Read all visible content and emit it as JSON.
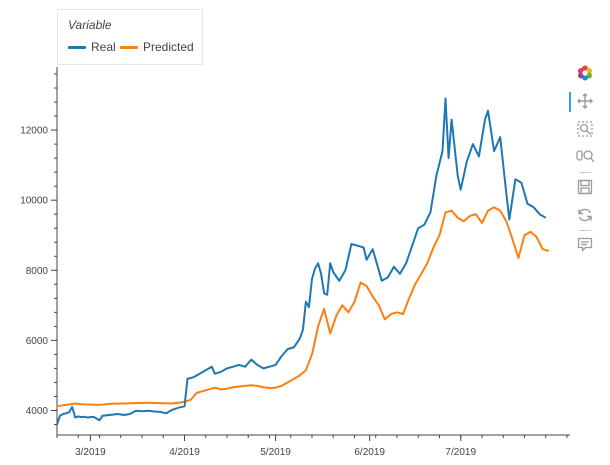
{
  "legend": {
    "title": "Variable",
    "items": [
      "Real",
      "Predicted"
    ]
  },
  "colors": {
    "real": "#1f77b4",
    "predicted": "#ff7f0e",
    "toolbar_active": "#26aae1"
  },
  "toolbar": {
    "tools": [
      {
        "icon": "bokeh-logo-icon",
        "label": ""
      },
      {
        "icon": "pan-icon",
        "label": ""
      },
      {
        "icon": "box-zoom-icon",
        "label": ""
      },
      {
        "icon": "wheel-zoom-icon",
        "label": ""
      },
      {
        "icon": "save-icon",
        "label": ""
      },
      {
        "icon": "reset-icon",
        "label": ""
      },
      {
        "icon": "hover-icon",
        "label": ""
      }
    ]
  },
  "chart_data": {
    "type": "line",
    "title": "",
    "xlabel": "",
    "ylabel": "",
    "x_axis": "date",
    "xlim": [
      "2019-02-18",
      "2019-08-06"
    ],
    "ylim": [
      3300,
      13800
    ],
    "x_ticks": [
      {
        "date": "2019-03-01",
        "label": "3/2019"
      },
      {
        "date": "2019-04-01",
        "label": "4/2019"
      },
      {
        "date": "2019-05-01",
        "label": "5/2019"
      },
      {
        "date": "2019-06-01",
        "label": "6/2019"
      },
      {
        "date": "2019-07-01",
        "label": "7/2019"
      }
    ],
    "y_ticks": [
      4000,
      6000,
      8000,
      10000,
      12000
    ],
    "grid": false,
    "legend_position": "top-left",
    "series": [
      {
        "name": "Real",
        "points": [
          [
            "2019-02-18",
            3600
          ],
          [
            "2019-02-19",
            3850
          ],
          [
            "2019-02-20",
            3900
          ],
          [
            "2019-02-21",
            3920
          ],
          [
            "2019-02-22",
            3950
          ],
          [
            "2019-02-23",
            4100
          ],
          [
            "2019-02-24",
            3800
          ],
          [
            "2019-02-25",
            3830
          ],
          [
            "2019-02-26",
            3810
          ],
          [
            "2019-02-27",
            3820
          ],
          [
            "2019-02-28",
            3800
          ],
          [
            "2019-03-02",
            3820
          ],
          [
            "2019-03-04",
            3720
          ],
          [
            "2019-03-05",
            3850
          ],
          [
            "2019-03-08",
            3880
          ],
          [
            "2019-03-10",
            3900
          ],
          [
            "2019-03-12",
            3870
          ],
          [
            "2019-03-14",
            3900
          ],
          [
            "2019-03-16",
            3990
          ],
          [
            "2019-03-18",
            3980
          ],
          [
            "2019-03-20",
            3990
          ],
          [
            "2019-03-22",
            3970
          ],
          [
            "2019-03-24",
            3960
          ],
          [
            "2019-03-26",
            3920
          ],
          [
            "2019-03-28",
            4020
          ],
          [
            "2019-03-30",
            4080
          ],
          [
            "2019-04-01",
            4120
          ],
          [
            "2019-04-02",
            4900
          ],
          [
            "2019-04-04",
            4950
          ],
          [
            "2019-04-06",
            5050
          ],
          [
            "2019-04-08",
            5150
          ],
          [
            "2019-04-10",
            5250
          ],
          [
            "2019-04-11",
            5050
          ],
          [
            "2019-04-13",
            5100
          ],
          [
            "2019-04-15",
            5200
          ],
          [
            "2019-04-17",
            5250
          ],
          [
            "2019-04-19",
            5300
          ],
          [
            "2019-04-21",
            5250
          ],
          [
            "2019-04-23",
            5450
          ],
          [
            "2019-04-25",
            5300
          ],
          [
            "2019-04-27",
            5200
          ],
          [
            "2019-04-29",
            5250
          ],
          [
            "2019-05-01",
            5300
          ],
          [
            "2019-05-03",
            5550
          ],
          [
            "2019-05-05",
            5750
          ],
          [
            "2019-05-07",
            5800
          ],
          [
            "2019-05-09",
            6050
          ],
          [
            "2019-05-10",
            6300
          ],
          [
            "2019-05-11",
            7100
          ],
          [
            "2019-05-12",
            6950
          ],
          [
            "2019-05-13",
            7750
          ],
          [
            "2019-05-14",
            8050
          ],
          [
            "2019-05-15",
            8200
          ],
          [
            "2019-05-16",
            7900
          ],
          [
            "2019-05-17",
            7350
          ],
          [
            "2019-05-18",
            7300
          ],
          [
            "2019-05-19",
            8200
          ],
          [
            "2019-05-20",
            7950
          ],
          [
            "2019-05-22",
            7700
          ],
          [
            "2019-05-24",
            8000
          ],
          [
            "2019-05-26",
            8750
          ],
          [
            "2019-05-28",
            8700
          ],
          [
            "2019-05-30",
            8650
          ],
          [
            "2019-05-31",
            8300
          ],
          [
            "2019-06-02",
            8600
          ],
          [
            "2019-06-04",
            8000
          ],
          [
            "2019-06-05",
            7700
          ],
          [
            "2019-06-07",
            7800
          ],
          [
            "2019-06-09",
            8100
          ],
          [
            "2019-06-11",
            7900
          ],
          [
            "2019-06-13",
            8200
          ],
          [
            "2019-06-15",
            8700
          ],
          [
            "2019-06-17",
            9200
          ],
          [
            "2019-06-19",
            9300
          ],
          [
            "2019-06-21",
            9650
          ],
          [
            "2019-06-23",
            10700
          ],
          [
            "2019-06-25",
            11400
          ],
          [
            "2019-06-26",
            12900
          ],
          [
            "2019-06-27",
            11200
          ],
          [
            "2019-06-28",
            12300
          ],
          [
            "2019-06-30",
            10700
          ],
          [
            "2019-07-01",
            10300
          ],
          [
            "2019-07-03",
            11100
          ],
          [
            "2019-07-05",
            11600
          ],
          [
            "2019-07-07",
            11250
          ],
          [
            "2019-07-09",
            12300
          ],
          [
            "2019-07-10",
            12550
          ],
          [
            "2019-07-12",
            11400
          ],
          [
            "2019-07-14",
            11800
          ],
          [
            "2019-07-16",
            10200
          ],
          [
            "2019-07-17",
            9450
          ],
          [
            "2019-07-19",
            10600
          ],
          [
            "2019-07-21",
            10500
          ],
          [
            "2019-07-23",
            9900
          ],
          [
            "2019-07-25",
            9800
          ],
          [
            "2019-07-27",
            9600
          ],
          [
            "2019-07-29",
            9500
          ]
        ]
      },
      {
        "name": "Predicted",
        "points": [
          [
            "2019-02-18",
            4120
          ],
          [
            "2019-02-20",
            4150
          ],
          [
            "2019-02-22",
            4170
          ],
          [
            "2019-02-24",
            4200
          ],
          [
            "2019-02-26",
            4180
          ],
          [
            "2019-02-28",
            4170
          ],
          [
            "2019-03-04",
            4160
          ],
          [
            "2019-03-08",
            4190
          ],
          [
            "2019-03-12",
            4200
          ],
          [
            "2019-03-16",
            4210
          ],
          [
            "2019-03-20",
            4220
          ],
          [
            "2019-03-24",
            4210
          ],
          [
            "2019-03-28",
            4200
          ],
          [
            "2019-03-31",
            4230
          ],
          [
            "2019-04-03",
            4300
          ],
          [
            "2019-04-05",
            4500
          ],
          [
            "2019-04-07",
            4550
          ],
          [
            "2019-04-09",
            4600
          ],
          [
            "2019-04-11",
            4650
          ],
          [
            "2019-04-13",
            4600
          ],
          [
            "2019-04-15",
            4620
          ],
          [
            "2019-04-17",
            4660
          ],
          [
            "2019-04-19",
            4680
          ],
          [
            "2019-04-21",
            4700
          ],
          [
            "2019-04-23",
            4720
          ],
          [
            "2019-04-25",
            4700
          ],
          [
            "2019-04-27",
            4660
          ],
          [
            "2019-04-29",
            4640
          ],
          [
            "2019-05-01",
            4650
          ],
          [
            "2019-05-03",
            4700
          ],
          [
            "2019-05-05",
            4800
          ],
          [
            "2019-05-07",
            4900
          ],
          [
            "2019-05-09",
            5000
          ],
          [
            "2019-05-11",
            5150
          ],
          [
            "2019-05-13",
            5600
          ],
          [
            "2019-05-15",
            6400
          ],
          [
            "2019-05-17",
            6900
          ],
          [
            "2019-05-19",
            6200
          ],
          [
            "2019-05-21",
            6700
          ],
          [
            "2019-05-23",
            7000
          ],
          [
            "2019-05-25",
            6800
          ],
          [
            "2019-05-27",
            7100
          ],
          [
            "2019-05-29",
            7650
          ],
          [
            "2019-05-31",
            7550
          ],
          [
            "2019-06-02",
            7250
          ],
          [
            "2019-06-04",
            7000
          ],
          [
            "2019-06-06",
            6600
          ],
          [
            "2019-06-08",
            6750
          ],
          [
            "2019-06-10",
            6800
          ],
          [
            "2019-06-12",
            6750
          ],
          [
            "2019-06-14",
            7200
          ],
          [
            "2019-06-16",
            7600
          ],
          [
            "2019-06-18",
            7900
          ],
          [
            "2019-06-20",
            8200
          ],
          [
            "2019-06-22",
            8650
          ],
          [
            "2019-06-24",
            9000
          ],
          [
            "2019-06-26",
            9650
          ],
          [
            "2019-06-28",
            9700
          ],
          [
            "2019-06-30",
            9500
          ],
          [
            "2019-07-02",
            9400
          ],
          [
            "2019-07-04",
            9550
          ],
          [
            "2019-07-06",
            9600
          ],
          [
            "2019-07-08",
            9350
          ],
          [
            "2019-07-10",
            9700
          ],
          [
            "2019-07-12",
            9800
          ],
          [
            "2019-07-14",
            9700
          ],
          [
            "2019-07-16",
            9400
          ],
          [
            "2019-07-18",
            8900
          ],
          [
            "2019-07-20",
            8350
          ],
          [
            "2019-07-22",
            9000
          ],
          [
            "2019-07-24",
            9100
          ],
          [
            "2019-07-26",
            8950
          ],
          [
            "2019-07-28",
            8600
          ],
          [
            "2019-07-30",
            8550
          ]
        ]
      }
    ]
  }
}
